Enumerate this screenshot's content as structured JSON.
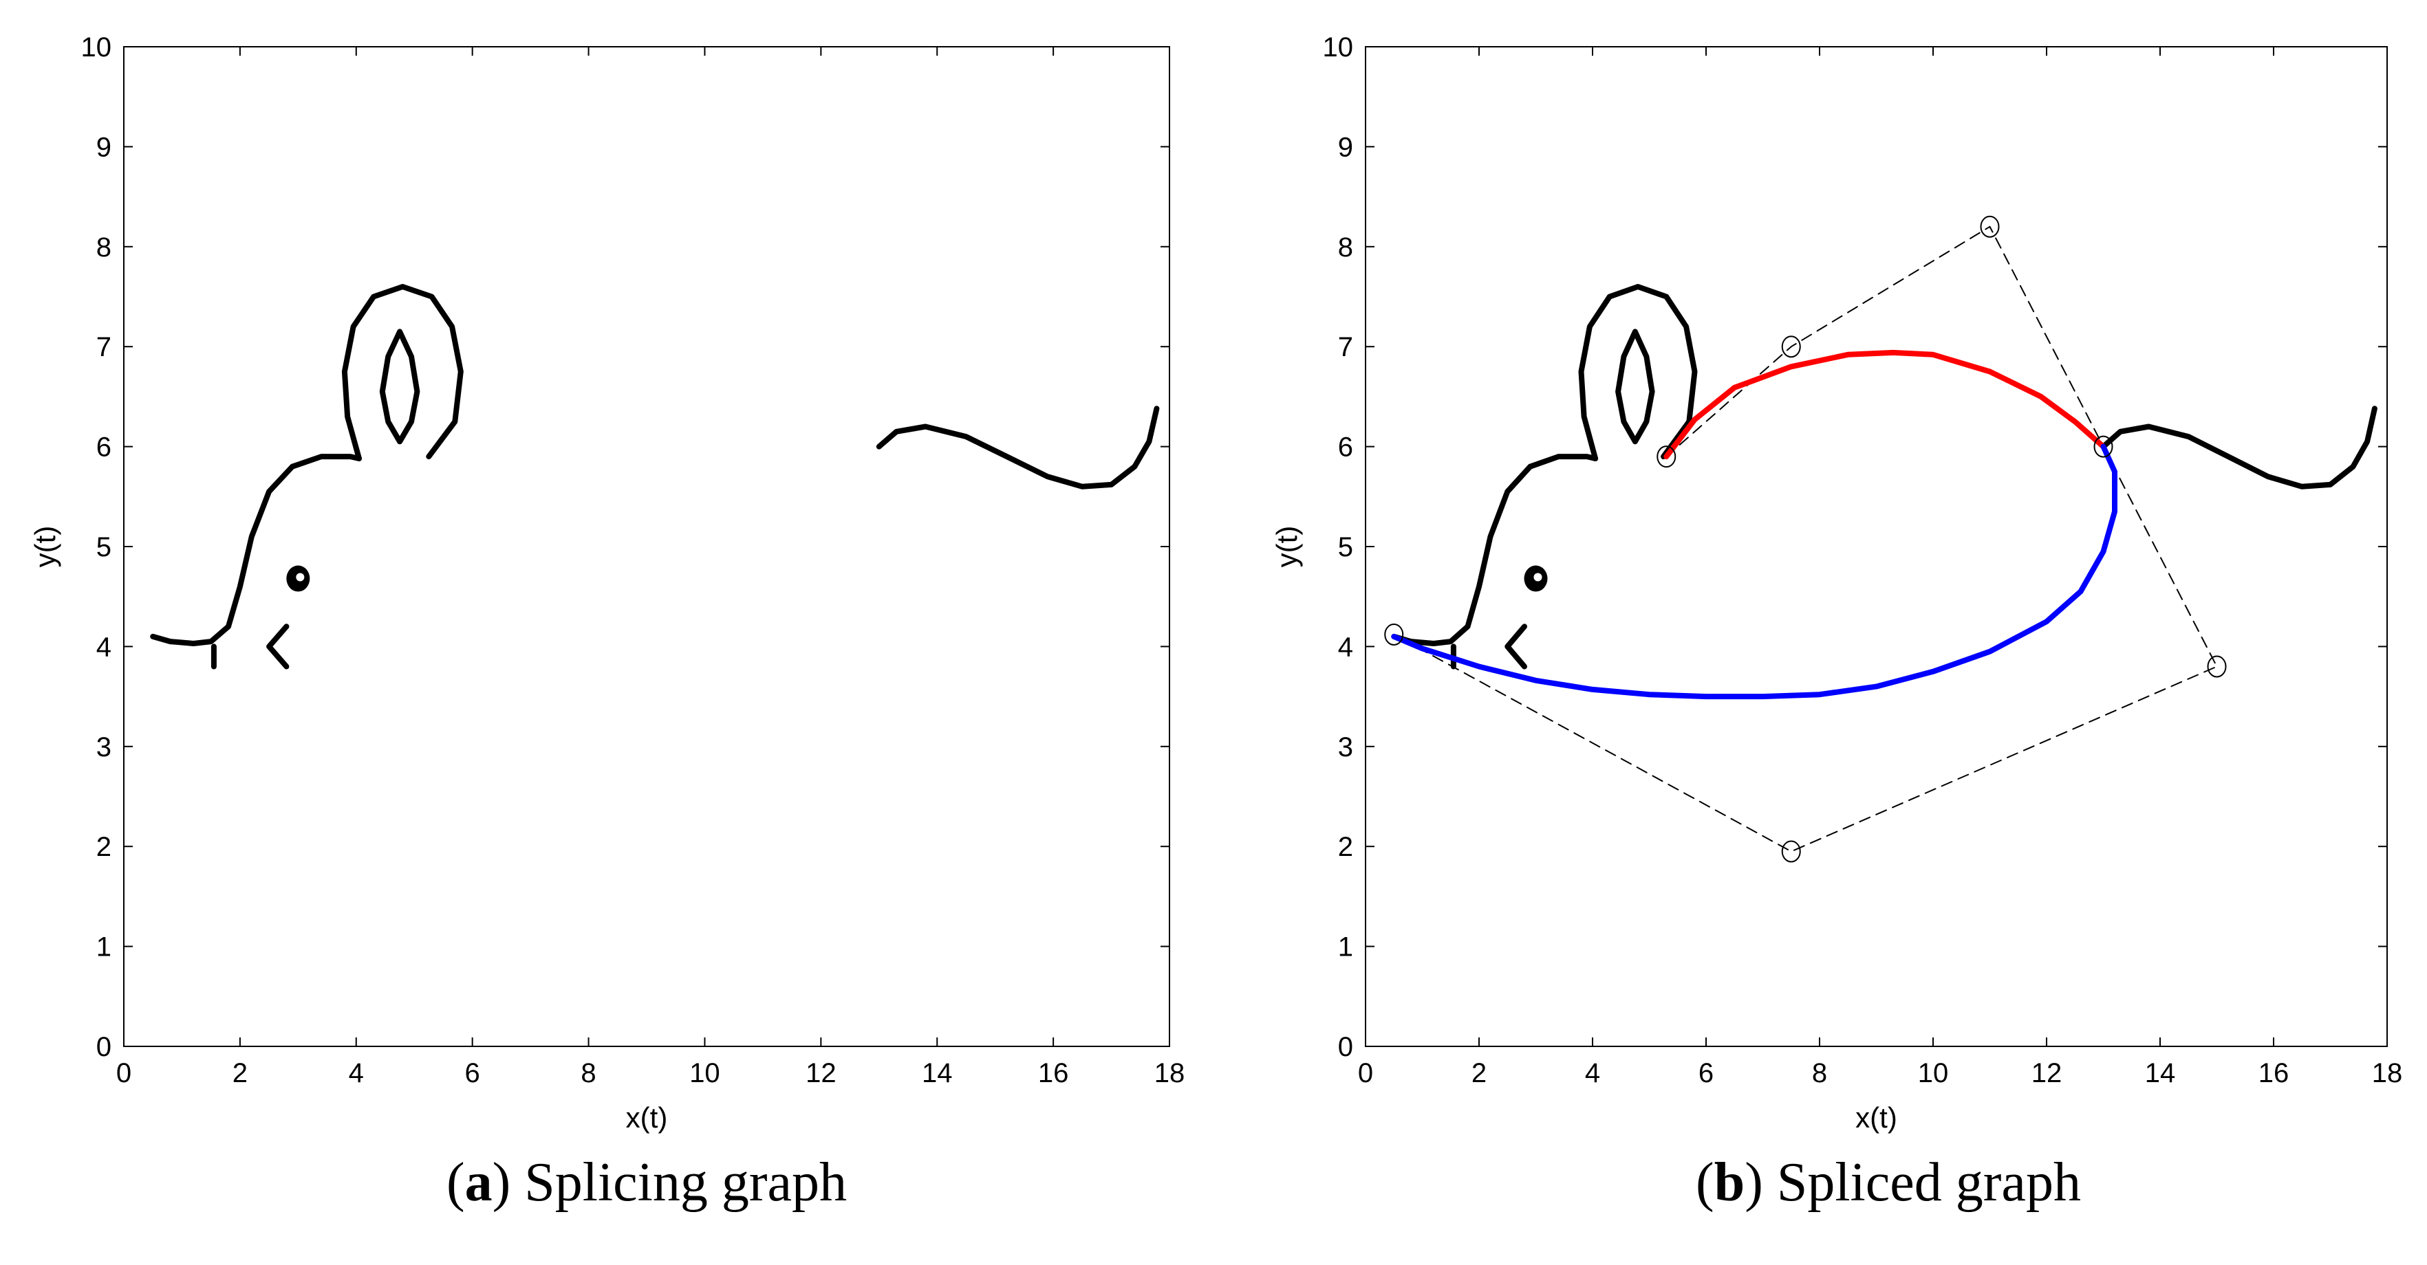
{
  "chart_data": [
    {
      "type": "line",
      "id": "a",
      "caption_label": "a",
      "caption_text": "Splicing graph",
      "xlabel": "x(t)",
      "ylabel": "y(t)",
      "xlim": [
        0,
        18
      ],
      "ylim": [
        0,
        10
      ],
      "xticks": [
        "0",
        "2",
        "4",
        "6",
        "8",
        "10",
        "12",
        "14",
        "16",
        "18"
      ],
      "yticks": [
        "0",
        "1",
        "2",
        "3",
        "4",
        "5",
        "6",
        "7",
        "8",
        "9",
        "10"
      ],
      "grid": false,
      "series": [
        {
          "name": "head-outline",
          "color": "#000000",
          "points": [
            [
              0.5,
              4.1
            ],
            [
              0.8,
              4.05
            ],
            [
              1.2,
              4.03
            ],
            [
              1.5,
              4.05
            ],
            [
              1.8,
              4.2
            ],
            [
              2.0,
              4.6
            ],
            [
              2.2,
              5.1
            ],
            [
              2.5,
              5.55
            ],
            [
              2.9,
              5.8
            ],
            [
              3.4,
              5.9
            ],
            [
              3.9,
              5.9
            ],
            [
              4.05,
              5.88
            ]
          ]
        },
        {
          "name": "chin-mark",
          "color": "#000000",
          "points": [
            [
              1.55,
              4.0
            ],
            [
              1.55,
              3.8
            ]
          ]
        },
        {
          "name": "mouth",
          "color": "#000000",
          "points": [
            [
              2.8,
              4.2
            ],
            [
              2.5,
              4.0
            ],
            [
              2.8,
              3.8
            ]
          ]
        },
        {
          "name": "ear-outer",
          "color": "#000000",
          "points": [
            [
              4.05,
              5.88
            ],
            [
              3.85,
              6.3
            ],
            [
              3.8,
              6.75
            ],
            [
              3.95,
              7.2
            ],
            [
              4.3,
              7.5
            ],
            [
              4.8,
              7.6
            ],
            [
              5.3,
              7.5
            ],
            [
              5.65,
              7.2
            ],
            [
              5.8,
              6.75
            ],
            [
              5.7,
              6.25
            ],
            [
              5.25,
              5.9
            ]
          ]
        },
        {
          "name": "ear-inner",
          "color": "#000000",
          "points": [
            [
              4.75,
              7.15
            ],
            [
              4.95,
              6.9
            ],
            [
              5.05,
              6.55
            ],
            [
              4.95,
              6.25
            ],
            [
              4.75,
              6.05
            ],
            [
              4.55,
              6.25
            ],
            [
              4.45,
              6.55
            ],
            [
              4.55,
              6.9
            ],
            [
              4.75,
              7.15
            ]
          ]
        },
        {
          "name": "tail",
          "color": "#000000",
          "points": [
            [
              13.0,
              6.0
            ],
            [
              13.3,
              6.15
            ],
            [
              13.8,
              6.2
            ],
            [
              14.5,
              6.1
            ],
            [
              15.2,
              5.9
            ],
            [
              15.9,
              5.7
            ],
            [
              16.5,
              5.6
            ],
            [
              17.0,
              5.62
            ],
            [
              17.4,
              5.8
            ],
            [
              17.65,
              6.05
            ],
            [
              17.78,
              6.38
            ]
          ]
        }
      ],
      "points": [
        {
          "name": "eye",
          "x": 3.0,
          "y": 4.68
        }
      ]
    },
    {
      "type": "line",
      "id": "b",
      "caption_label": "b",
      "caption_text": "Spliced graph",
      "xlabel": "x(t)",
      "ylabel": "y(t)",
      "xlim": [
        0,
        18
      ],
      "ylim": [
        0,
        10
      ],
      "xticks": [
        "0",
        "2",
        "4",
        "6",
        "8",
        "10",
        "12",
        "14",
        "16",
        "18"
      ],
      "yticks": [
        "0",
        "1",
        "2",
        "3",
        "4",
        "5",
        "6",
        "7",
        "8",
        "9",
        "10"
      ],
      "grid": false,
      "series": [
        {
          "name": "head-outline",
          "color": "#000000",
          "points": [
            [
              0.5,
              4.1
            ],
            [
              0.8,
              4.05
            ],
            [
              1.2,
              4.03
            ],
            [
              1.5,
              4.05
            ],
            [
              1.8,
              4.2
            ],
            [
              2.0,
              4.6
            ],
            [
              2.2,
              5.1
            ],
            [
              2.5,
              5.55
            ],
            [
              2.9,
              5.8
            ],
            [
              3.4,
              5.9
            ],
            [
              3.9,
              5.9
            ],
            [
              4.05,
              5.88
            ]
          ]
        },
        {
          "name": "chin-mark",
          "color": "#000000",
          "points": [
            [
              1.55,
              4.0
            ],
            [
              1.55,
              3.8
            ]
          ]
        },
        {
          "name": "mouth",
          "color": "#000000",
          "points": [
            [
              2.8,
              4.2
            ],
            [
              2.5,
              4.0
            ],
            [
              2.8,
              3.8
            ]
          ]
        },
        {
          "name": "ear-outer",
          "color": "#000000",
          "points": [
            [
              4.05,
              5.88
            ],
            [
              3.85,
              6.3
            ],
            [
              3.8,
              6.75
            ],
            [
              3.95,
              7.2
            ],
            [
              4.3,
              7.5
            ],
            [
              4.8,
              7.6
            ],
            [
              5.3,
              7.5
            ],
            [
              5.65,
              7.2
            ],
            [
              5.8,
              6.75
            ],
            [
              5.7,
              6.25
            ],
            [
              5.25,
              5.9
            ]
          ]
        },
        {
          "name": "ear-inner",
          "color": "#000000",
          "points": [
            [
              4.75,
              7.15
            ],
            [
              4.95,
              6.9
            ],
            [
              5.05,
              6.55
            ],
            [
              4.95,
              6.25
            ],
            [
              4.75,
              6.05
            ],
            [
              4.55,
              6.25
            ],
            [
              4.45,
              6.55
            ],
            [
              4.55,
              6.9
            ],
            [
              4.75,
              7.15
            ]
          ]
        },
        {
          "name": "tail",
          "color": "#000000",
          "points": [
            [
              13.0,
              6.0
            ],
            [
              13.3,
              6.15
            ],
            [
              13.8,
              6.2
            ],
            [
              14.5,
              6.1
            ],
            [
              15.2,
              5.9
            ],
            [
              15.9,
              5.7
            ],
            [
              16.5,
              5.6
            ],
            [
              17.0,
              5.62
            ],
            [
              17.4,
              5.8
            ],
            [
              17.65,
              6.05
            ],
            [
              17.78,
              6.38
            ]
          ]
        },
        {
          "name": "control-polygon-red",
          "color": "#000000",
          "dashed": true,
          "thin": true,
          "points": [
            [
              5.3,
              5.9
            ],
            [
              7.5,
              7.0
            ],
            [
              11.0,
              8.2
            ],
            [
              13.0,
              6.0
            ]
          ]
        },
        {
          "name": "control-polygon-blue",
          "color": "#000000",
          "dashed": true,
          "thin": true,
          "points": [
            [
              13.0,
              6.0
            ],
            [
              15.0,
              3.8
            ],
            [
              7.5,
              1.95
            ],
            [
              0.5,
              4.12
            ]
          ]
        },
        {
          "name": "spliced-curve-red",
          "color": "#ff0000",
          "points": [
            [
              5.3,
              5.9
            ],
            [
              5.8,
              6.27
            ],
            [
              6.5,
              6.59
            ],
            [
              7.5,
              6.8
            ],
            [
              8.5,
              6.92
            ],
            [
              9.3,
              6.94
            ],
            [
              10.0,
              6.92
            ],
            [
              11.0,
              6.75
            ],
            [
              11.9,
              6.5
            ],
            [
              12.5,
              6.25
            ],
            [
              13.0,
              6.0
            ]
          ]
        },
        {
          "name": "spliced-curve-blue",
          "color": "#0000ff",
          "points": [
            [
              13.0,
              6.0
            ],
            [
              13.2,
              5.75
            ],
            [
              13.2,
              5.35
            ],
            [
              13.0,
              4.95
            ],
            [
              12.6,
              4.55
            ],
            [
              12.0,
              4.25
            ],
            [
              11.0,
              3.95
            ],
            [
              10.0,
              3.75
            ],
            [
              9.0,
              3.6
            ],
            [
              8.0,
              3.52
            ],
            [
              7.0,
              3.5
            ],
            [
              6.0,
              3.5
            ],
            [
              5.0,
              3.52
            ],
            [
              4.0,
              3.57
            ],
            [
              3.0,
              3.66
            ],
            [
              2.0,
              3.8
            ],
            [
              1.0,
              3.98
            ],
            [
              0.5,
              4.1
            ]
          ]
        }
      ],
      "control_points": [
        {
          "x": 5.3,
          "y": 5.9
        },
        {
          "x": 7.5,
          "y": 7.0
        },
        {
          "x": 11.0,
          "y": 8.2
        },
        {
          "x": 13.0,
          "y": 6.0
        },
        {
          "x": 15.0,
          "y": 3.8
        },
        {
          "x": 7.5,
          "y": 1.95
        },
        {
          "x": 0.5,
          "y": 4.12
        }
      ],
      "points": [
        {
          "name": "eye",
          "x": 3.0,
          "y": 4.68
        }
      ]
    }
  ]
}
